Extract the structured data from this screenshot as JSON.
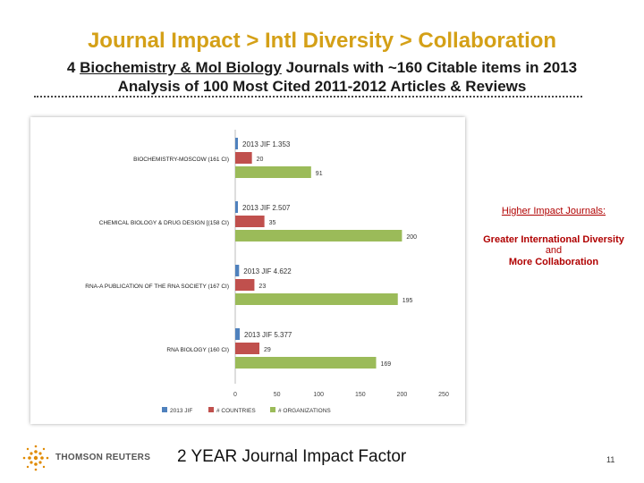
{
  "title": "Journal Impact > Intl Diversity > Collaboration",
  "subtitle": {
    "line1_prefix": "4 ",
    "line1_underlined": "Biochemistry & Mol Biology",
    "line1_suffix": " Journals with ~160 Citable items in 2013",
    "line2": "Analysis of 100 Most Cited 2011-2012 Articles & Reviews"
  },
  "annotation": {
    "heading": "Higher Impact Journals:",
    "line1": "Greater International Diversity",
    "line2": "and",
    "line3": "More Collaboration"
  },
  "footer": {
    "logo_text": "THOMSON REUTERS",
    "caption": "2 YEAR Journal Impact Factor",
    "page_number": "11"
  },
  "colors": {
    "title": "#d4a017",
    "annotation": "#b00000",
    "jif": "#4f81bd",
    "countries": "#c0504d",
    "organizations": "#9bbb59"
  },
  "chart_data": {
    "type": "bar",
    "orientation": "horizontal",
    "categories": [
      "BIOCHEMISTRY-MOSCOW (161 CI)",
      "CHEMICAL BIOLOGY & DRUG DESIGN [(158 CI)",
      "RNA-A PUBLICATION OF THE RNA SOCIETY (167 CI)",
      "RNA BIOLOGY (160 CI)"
    ],
    "series": [
      {
        "name": "2013 JIF",
        "color": "#4f81bd",
        "values": [
          1.353,
          2.507,
          4.622,
          5.377
        ],
        "labels": [
          "2013 JIF 1.353",
          "2013 JIF 2.507",
          "2013 JIF 4.622",
          "2013 JIF 5.377"
        ]
      },
      {
        "name": "# COUNTRIES",
        "color": "#c0504d",
        "values": [
          20,
          35,
          23,
          29
        ],
        "labels": [
          "20",
          "35",
          "23",
          "29"
        ]
      },
      {
        "name": "# ORGANIZATIONS",
        "color": "#9bbb59",
        "values": [
          91,
          200,
          195,
          169
        ],
        "labels": [
          "91",
          "200",
          "195",
          "169"
        ]
      }
    ],
    "xlim": [
      0,
      250
    ],
    "xticks": [
      0,
      50,
      100,
      150,
      200,
      250
    ],
    "grid": false,
    "legend": "bottom"
  }
}
